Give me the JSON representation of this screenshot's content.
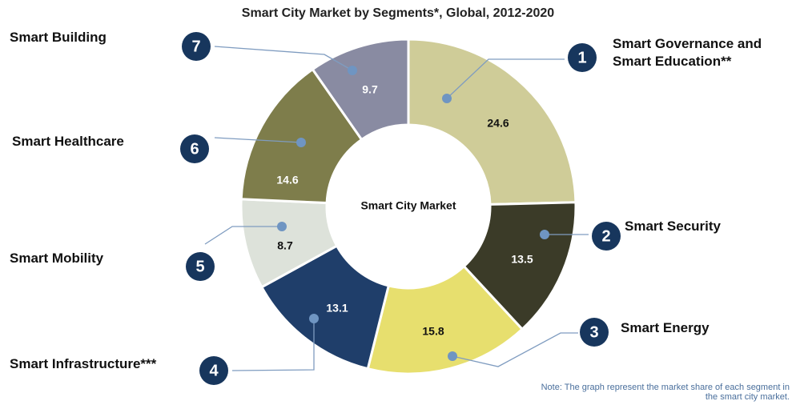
{
  "chart_data": {
    "type": "donut",
    "title": "Smart City Market by Segments*, Global, 2012-2020",
    "center_label": "Smart City Market",
    "note": "Note: The graph represent the market share of each segment in the smart city market.",
    "categories": [
      "Smart Governance and Smart Education**",
      "Smart Security",
      "Smart Energy",
      "Smart Infrastructure***",
      "Smart Mobility",
      "Smart Healthcare",
      "Smart Building"
    ],
    "numbers": [
      1,
      2,
      3,
      4,
      5,
      6,
      7
    ],
    "values": [
      24.6,
      13.5,
      15.8,
      13.1,
      8.7,
      14.6,
      9.7
    ],
    "colors": [
      "#cfcc98",
      "#3b3b28",
      "#e7df6e",
      "#1f3e6a",
      "#dde2da",
      "#7e7d4b",
      "#898ba2"
    ]
  }
}
